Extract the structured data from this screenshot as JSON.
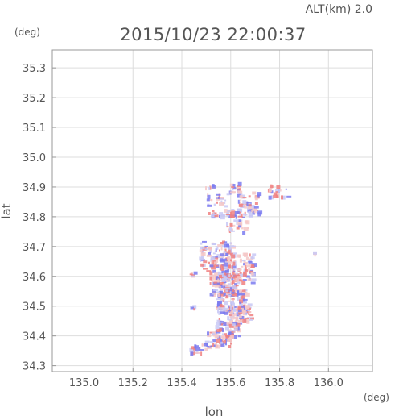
{
  "header": {
    "altitude_label": "ALT(km) 2.0",
    "timestamp": "2015/10/23 22:00:37"
  },
  "chart_data": {
    "type": "heatmap",
    "title": "2015/10/23 22:00:37",
    "xlabel": "lon",
    "ylabel": "lat",
    "x_unit": "(deg)",
    "y_unit": "(deg)",
    "xlim": [
      134.87,
      136.18
    ],
    "ylim": [
      34.28,
      35.36
    ],
    "x_ticks": [
      135.0,
      135.2,
      135.4,
      135.6,
      135.8,
      136.0
    ],
    "x_tick_labels": [
      "135.0",
      "135.2",
      "135.4",
      "135.6",
      "135.8",
      "136.0"
    ],
    "y_ticks": [
      34.3,
      34.4,
      34.5,
      34.6,
      34.7,
      34.8,
      34.9,
      35.0,
      35.1,
      35.2,
      35.3
    ],
    "y_tick_labels": [
      "34.3",
      "34.4",
      "34.5",
      "34.6",
      "34.7",
      "34.8",
      "34.9",
      "35.0",
      "35.1",
      "35.2",
      "35.3"
    ],
    "grid": true,
    "colors": {
      "positive": "#f08080",
      "negative": "#7b7bf0",
      "light_positive": "#f5c8c8",
      "light_negative": "#c8c8f5",
      "axis": "#999999",
      "text": "#555555"
    },
    "clusters": [
      {
        "lon": 135.51,
        "lat": 34.91,
        "rlon": 0.015,
        "rlat": 0.012,
        "n": 8
      },
      {
        "lon": 135.61,
        "lat": 34.9,
        "rlon": 0.02,
        "rlat": 0.02,
        "n": 14
      },
      {
        "lon": 135.55,
        "lat": 34.84,
        "rlon": 0.05,
        "rlat": 0.04,
        "n": 45
      },
      {
        "lon": 135.67,
        "lat": 34.85,
        "rlon": 0.05,
        "rlat": 0.04,
        "n": 50
      },
      {
        "lon": 135.79,
        "lat": 34.89,
        "rlon": 0.04,
        "rlat": 0.02,
        "n": 20
      },
      {
        "lon": 135.63,
        "lat": 34.79,
        "rlon": 0.05,
        "rlat": 0.04,
        "n": 40
      },
      {
        "lon": 135.54,
        "lat": 34.67,
        "rlon": 0.07,
        "rlat": 0.05,
        "n": 110
      },
      {
        "lon": 135.62,
        "lat": 34.63,
        "rlon": 0.07,
        "rlat": 0.05,
        "n": 120
      },
      {
        "lon": 135.57,
        "lat": 34.58,
        "rlon": 0.06,
        "rlat": 0.04,
        "n": 110
      },
      {
        "lon": 135.6,
        "lat": 34.52,
        "rlon": 0.06,
        "rlat": 0.04,
        "n": 100
      },
      {
        "lon": 135.63,
        "lat": 34.48,
        "rlon": 0.05,
        "rlat": 0.03,
        "n": 70
      },
      {
        "lon": 135.58,
        "lat": 34.43,
        "rlon": 0.05,
        "rlat": 0.03,
        "n": 65
      },
      {
        "lon": 135.55,
        "lat": 34.39,
        "rlon": 0.06,
        "rlat": 0.025,
        "n": 55
      },
      {
        "lon": 135.47,
        "lat": 34.36,
        "rlon": 0.04,
        "rlat": 0.015,
        "n": 20
      },
      {
        "lon": 135.94,
        "lat": 34.68,
        "rlon": 0.005,
        "rlat": 0.004,
        "n": 3
      },
      {
        "lon": 135.44,
        "lat": 34.5,
        "rlon": 0.01,
        "rlat": 0.008,
        "n": 4
      },
      {
        "lon": 135.44,
        "lat": 34.61,
        "rlon": 0.01,
        "rlat": 0.01,
        "n": 5
      }
    ]
  }
}
